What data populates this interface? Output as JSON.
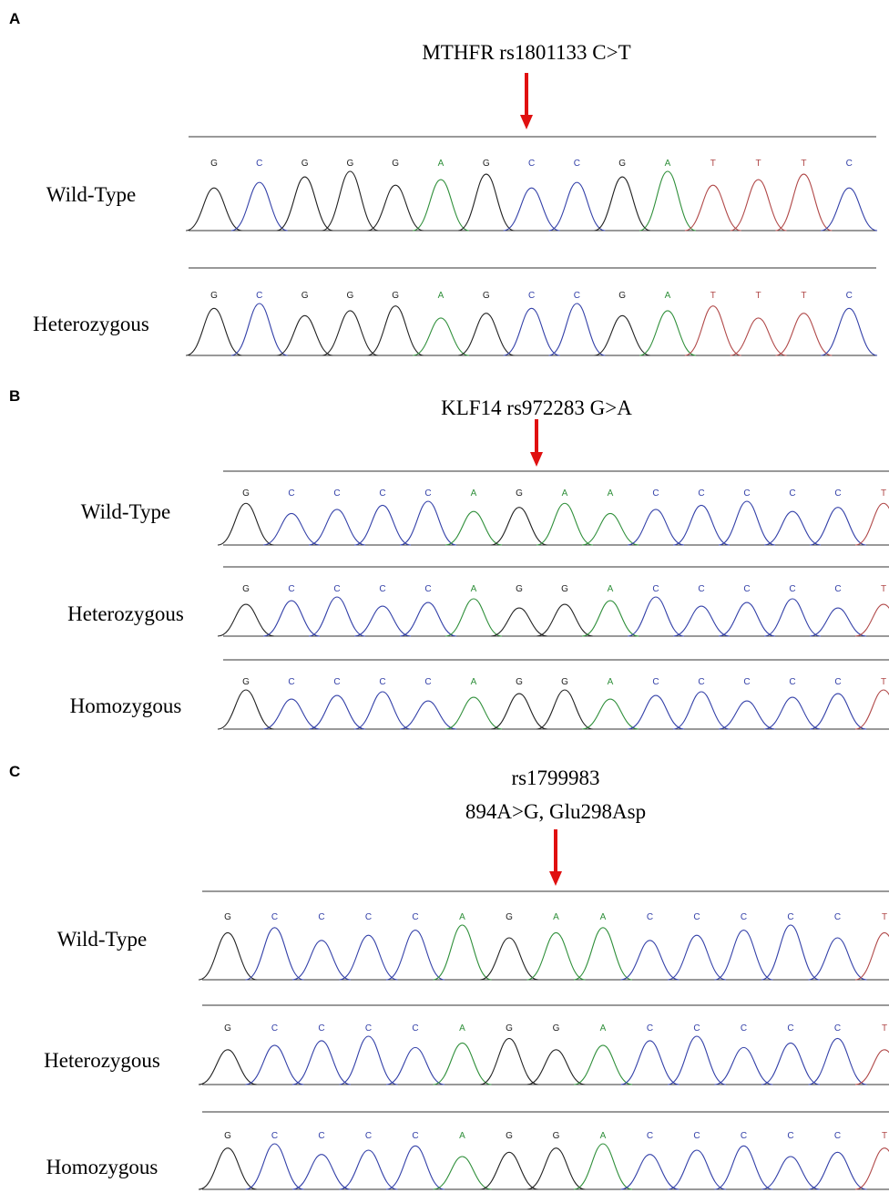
{
  "panels": [
    {
      "label": "A",
      "title": [
        "MTHFR rs1801133 C>T"
      ],
      "rows": [
        {
          "label": "Wild-Type",
          "bases": [
            "G",
            "C",
            "G",
            "G",
            "G",
            "A",
            "G",
            "C",
            "C",
            "G",
            "A",
            "T",
            "T",
            "T",
            "C"
          ]
        },
        {
          "label": "Heterozygous",
          "bases": [
            "G",
            "C",
            "G",
            "G",
            "G",
            "A",
            "G",
            "C",
            "C",
            "G",
            "A",
            "T",
            "T",
            "T",
            "C"
          ]
        }
      ]
    },
    {
      "label": "B",
      "title": [
        "KLF14 rs972283 G>A"
      ],
      "rows": [
        {
          "label": "Wild-Type",
          "bases": [
            "G",
            "C",
            "C",
            "C",
            "C",
            "A",
            "G",
            "A",
            "A",
            "C",
            "C",
            "C",
            "C",
            "C",
            "T"
          ]
        },
        {
          "label": "Heterozygous",
          "bases": [
            "G",
            "C",
            "C",
            "C",
            "C",
            "A",
            "G",
            "G",
            "A",
            "C",
            "C",
            "C",
            "C",
            "C",
            "T"
          ]
        },
        {
          "label": "Homozygous",
          "bases": [
            "G",
            "C",
            "C",
            "C",
            "C",
            "A",
            "G",
            "G",
            "A",
            "C",
            "C",
            "C",
            "C",
            "C",
            "T"
          ]
        }
      ]
    },
    {
      "label": "C",
      "title": [
        "rs1799983",
        "894A>G, Glu298Asp"
      ],
      "rows": [
        {
          "label": "Wild-Type",
          "bases": [
            "G",
            "C",
            "C",
            "C",
            "C",
            "A",
            "G",
            "A",
            "A",
            "C",
            "C",
            "C",
            "C",
            "C",
            "T"
          ]
        },
        {
          "label": "Heterozygous",
          "bases": [
            "G",
            "C",
            "C",
            "C",
            "C",
            "A",
            "G",
            "G",
            "A",
            "C",
            "C",
            "C",
            "C",
            "C",
            "T"
          ]
        },
        {
          "label": "Homozygous",
          "bases": [
            "G",
            "C",
            "C",
            "C",
            "C",
            "A",
            "G",
            "G",
            "A",
            "C",
            "C",
            "C",
            "C",
            "C",
            "T"
          ]
        }
      ]
    }
  ],
  "base_colors": {
    "G": "#222222",
    "C": "#3340a8",
    "A": "#2f8f3a",
    "T": "#b04848"
  }
}
